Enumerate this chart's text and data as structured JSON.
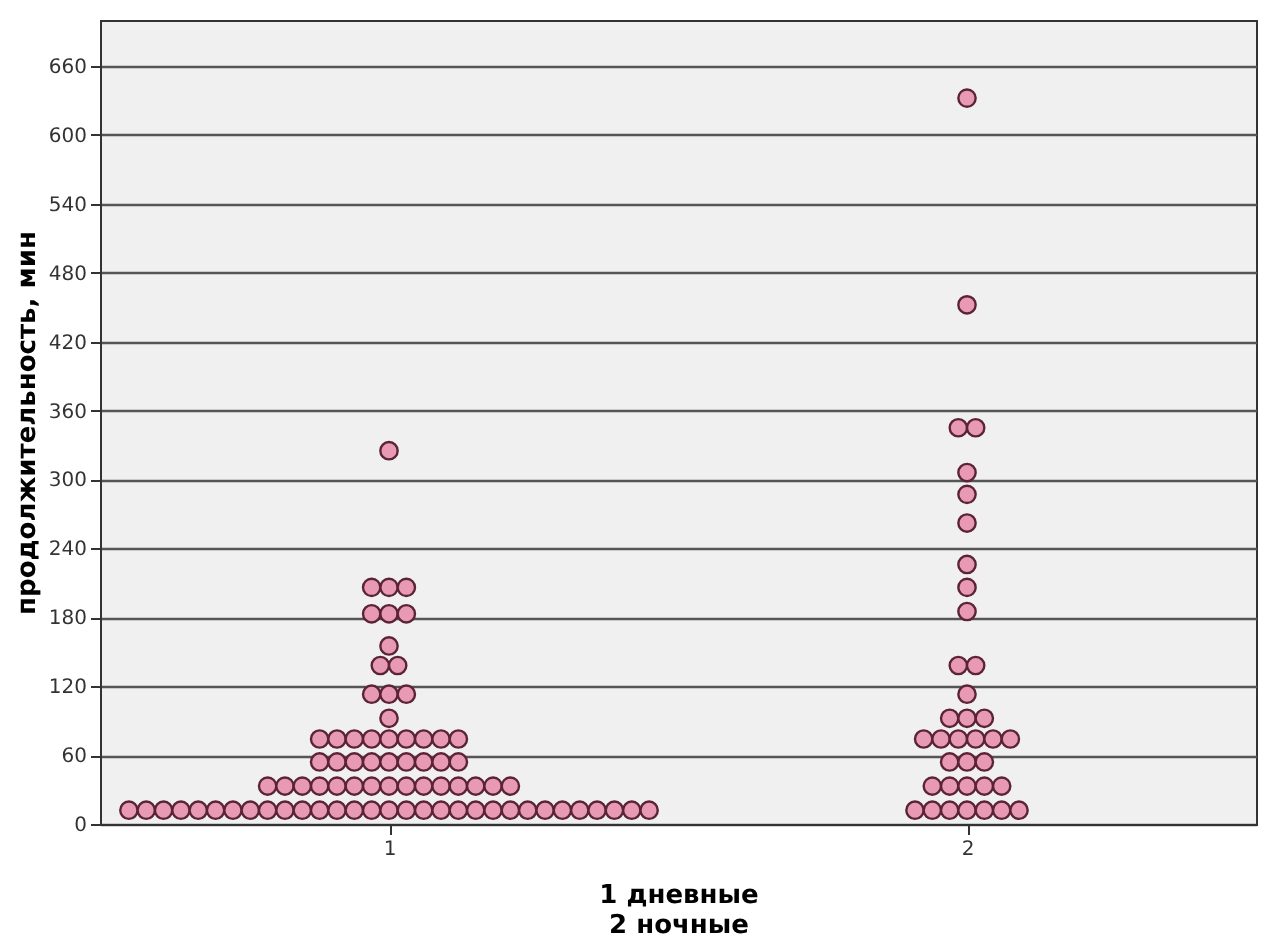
{
  "chart_data": {
    "type": "scatter",
    "xlabel": "1 дневные\n2 ночные",
    "ylabel": "продолжительность, мин",
    "xlim": [
      0.5,
      2.5
    ],
    "xticks": [
      1,
      2
    ],
    "ylim": [
      0,
      700
    ],
    "yticks": [
      0,
      60,
      120,
      180,
      240,
      300,
      360,
      420,
      480,
      540,
      600,
      660
    ],
    "grid": "y",
    "marker": "circle",
    "series": [
      {
        "color": "#e89ab4",
        "x": [
          0.55,
          0.58,
          0.61,
          0.64,
          0.67,
          0.7,
          0.73,
          0.76,
          0.79,
          0.82,
          0.85,
          0.88,
          0.91,
          0.94,
          0.97,
          1,
          1.03,
          1.06,
          1.09,
          1.12,
          1.15,
          1.18,
          1.21,
          1.24,
          1.27,
          1.3,
          1.33,
          1.36,
          1.39,
          1.42,
          1.45,
          0.79,
          0.82,
          0.85,
          0.88,
          0.91,
          0.94,
          0.97,
          1,
          1.03,
          1.06,
          1.09,
          1.12,
          1.15,
          1.18,
          1.21,
          0.88,
          0.91,
          0.94,
          0.97,
          1,
          1.03,
          1.06,
          1.09,
          1.12,
          0.88,
          0.91,
          0.94,
          0.97,
          1,
          1.03,
          1.06,
          1.09,
          1.12,
          1,
          0.97,
          1,
          1.03,
          0.985,
          1.015,
          1,
          0.97,
          1,
          1.03,
          0.97,
          1,
          1.03,
          1,
          1.91,
          1.94,
          1.97,
          2,
          2.03,
          2.06,
          2.09,
          1.94,
          1.97,
          2,
          2.03,
          2.06,
          1.97,
          2,
          2.03,
          1.925,
          1.955,
          1.985,
          2.015,
          2.045,
          2.075,
          1.97,
          2,
          2.03,
          2,
          1.985,
          2.015,
          2,
          2,
          2,
          2,
          2,
          2,
          1.985,
          2.015,
          2,
          2
        ],
        "values": [
          12,
          12,
          12,
          12,
          12,
          12,
          12,
          12,
          12,
          12,
          12,
          12,
          12,
          12,
          12,
          12,
          12,
          12,
          12,
          12,
          12,
          12,
          12,
          12,
          12,
          12,
          12,
          12,
          12,
          12,
          12,
          33,
          33,
          33,
          33,
          33,
          33,
          33,
          33,
          33,
          33,
          33,
          33,
          33,
          33,
          33,
          54,
          54,
          54,
          54,
          54,
          54,
          54,
          54,
          54,
          74,
          74,
          74,
          74,
          74,
          74,
          74,
          74,
          74,
          92,
          113,
          113,
          113,
          138,
          138,
          155,
          183,
          183,
          183,
          206,
          206,
          206,
          325,
          12,
          12,
          12,
          12,
          12,
          12,
          12,
          33,
          33,
          33,
          33,
          33,
          54,
          54,
          54,
          74,
          74,
          74,
          74,
          74,
          74,
          92,
          92,
          92,
          113,
          138,
          138,
          185,
          206,
          226,
          262,
          287,
          306,
          345,
          345,
          452,
          632
        ]
      }
    ]
  }
}
